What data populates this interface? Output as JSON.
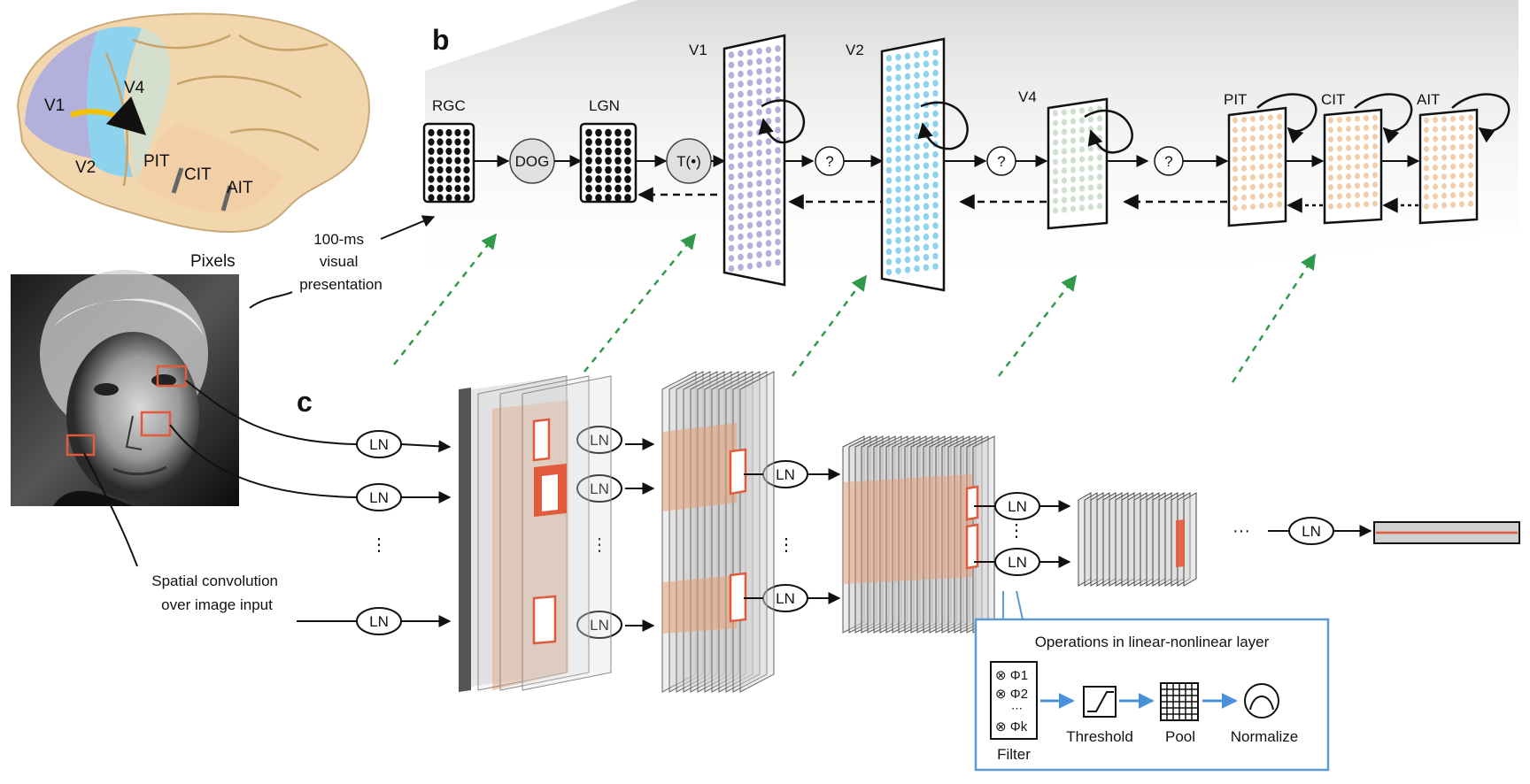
{
  "panel_b": {
    "letter": "b",
    "stages": {
      "rgc": "RGC",
      "lgn": "LGN",
      "v1": "V1",
      "v2": "V2",
      "v4": "V4",
      "pit": "PIT",
      "cit": "CIT",
      "ait": "AIT"
    },
    "ops": {
      "dog": "DOG",
      "threshold": "T(•)",
      "unknown": "?"
    }
  },
  "brain": {
    "labels": [
      "V1",
      "V4",
      "V2",
      "PIT",
      "CIT",
      "AIT"
    ]
  },
  "stimulus": {
    "pixels_label": "Pixels",
    "presentation_label": [
      "100-ms",
      "visual",
      "presentation"
    ],
    "conv_label": [
      "Spatial convolution",
      "over image input"
    ]
  },
  "panel_c": {
    "letter": "c",
    "ln": "LN",
    "ellipsis_v": "⋮",
    "ellipsis_h": "···"
  },
  "ln_box": {
    "title": "Operations in linear-nonlinear layer",
    "filters": [
      "⊗ Φ1",
      "⊗ Φ2",
      "⋯",
      "⊗ Φk"
    ],
    "steps": [
      "Filter",
      "Threshold",
      "Pool",
      "Normalize"
    ]
  },
  "colors": {
    "v1": "#b3b0dc",
    "v2": "#8ed3ee",
    "v4": "#cfe0cf",
    "it": "#f3cdaa",
    "brain": "#f2d7ae",
    "feedforward_hint": "#2e9a4a",
    "ln_box_border": "#5a9bd5",
    "patch": "#e25a3c"
  }
}
